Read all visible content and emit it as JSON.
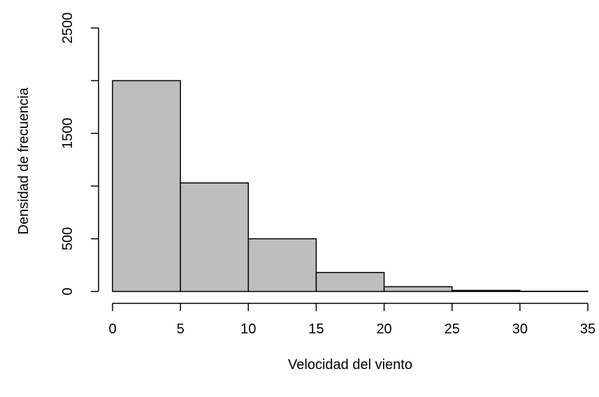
{
  "chart_data": {
    "type": "bar",
    "subtype": "histogram",
    "title": "",
    "xlabel": "Velocidad del viento",
    "ylabel": "Densidad de frecuencia",
    "bin_edges": [
      0,
      5,
      10,
      15,
      20,
      25,
      30,
      35
    ],
    "values": [
      2000,
      1030,
      500,
      180,
      45,
      10,
      2
    ],
    "xlim": [
      0,
      35
    ],
    "ylim": [
      0,
      2500
    ],
    "x_ticks": [
      0,
      5,
      10,
      15,
      20,
      25,
      30,
      35
    ],
    "x_tick_labels": [
      "0",
      "5",
      "10",
      "15",
      "20",
      "25",
      "30",
      "35"
    ],
    "y_ticks": [
      0,
      500,
      1000,
      1500,
      2000,
      2500
    ],
    "y_tick_labels": [
      "0",
      "500",
      "",
      "1500",
      "",
      "2500"
    ],
    "bar_fill": "#bebebe",
    "bar_stroke": "#000000",
    "grid": false,
    "legend": "none"
  }
}
